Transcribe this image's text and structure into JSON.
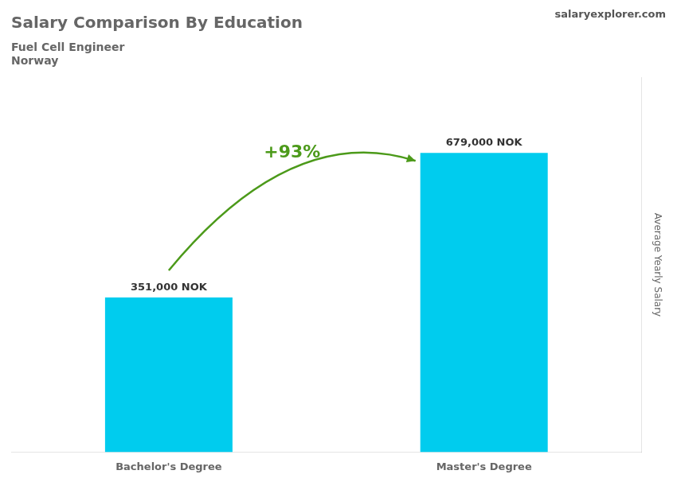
{
  "chart_data": {
    "type": "bar",
    "title": "Salary Comparison By Education",
    "subtitle": [
      "Fuel Cell Engineer",
      "Norway"
    ],
    "ylabel": "Average Yearly Salary",
    "categories": [
      "Bachelor's Degree",
      "Master's Degree"
    ],
    "values": [
      351000,
      679000
    ],
    "value_labels": [
      "351,000 NOK",
      "679,000 NOK"
    ],
    "data_labels": true,
    "annotations": [
      "salaryexplorer.com",
      "+93%"
    ],
    "color": "#00ccee",
    "ylim": [
      0,
      850000
    ],
    "grid": false,
    "tick_labels": "x"
  }
}
